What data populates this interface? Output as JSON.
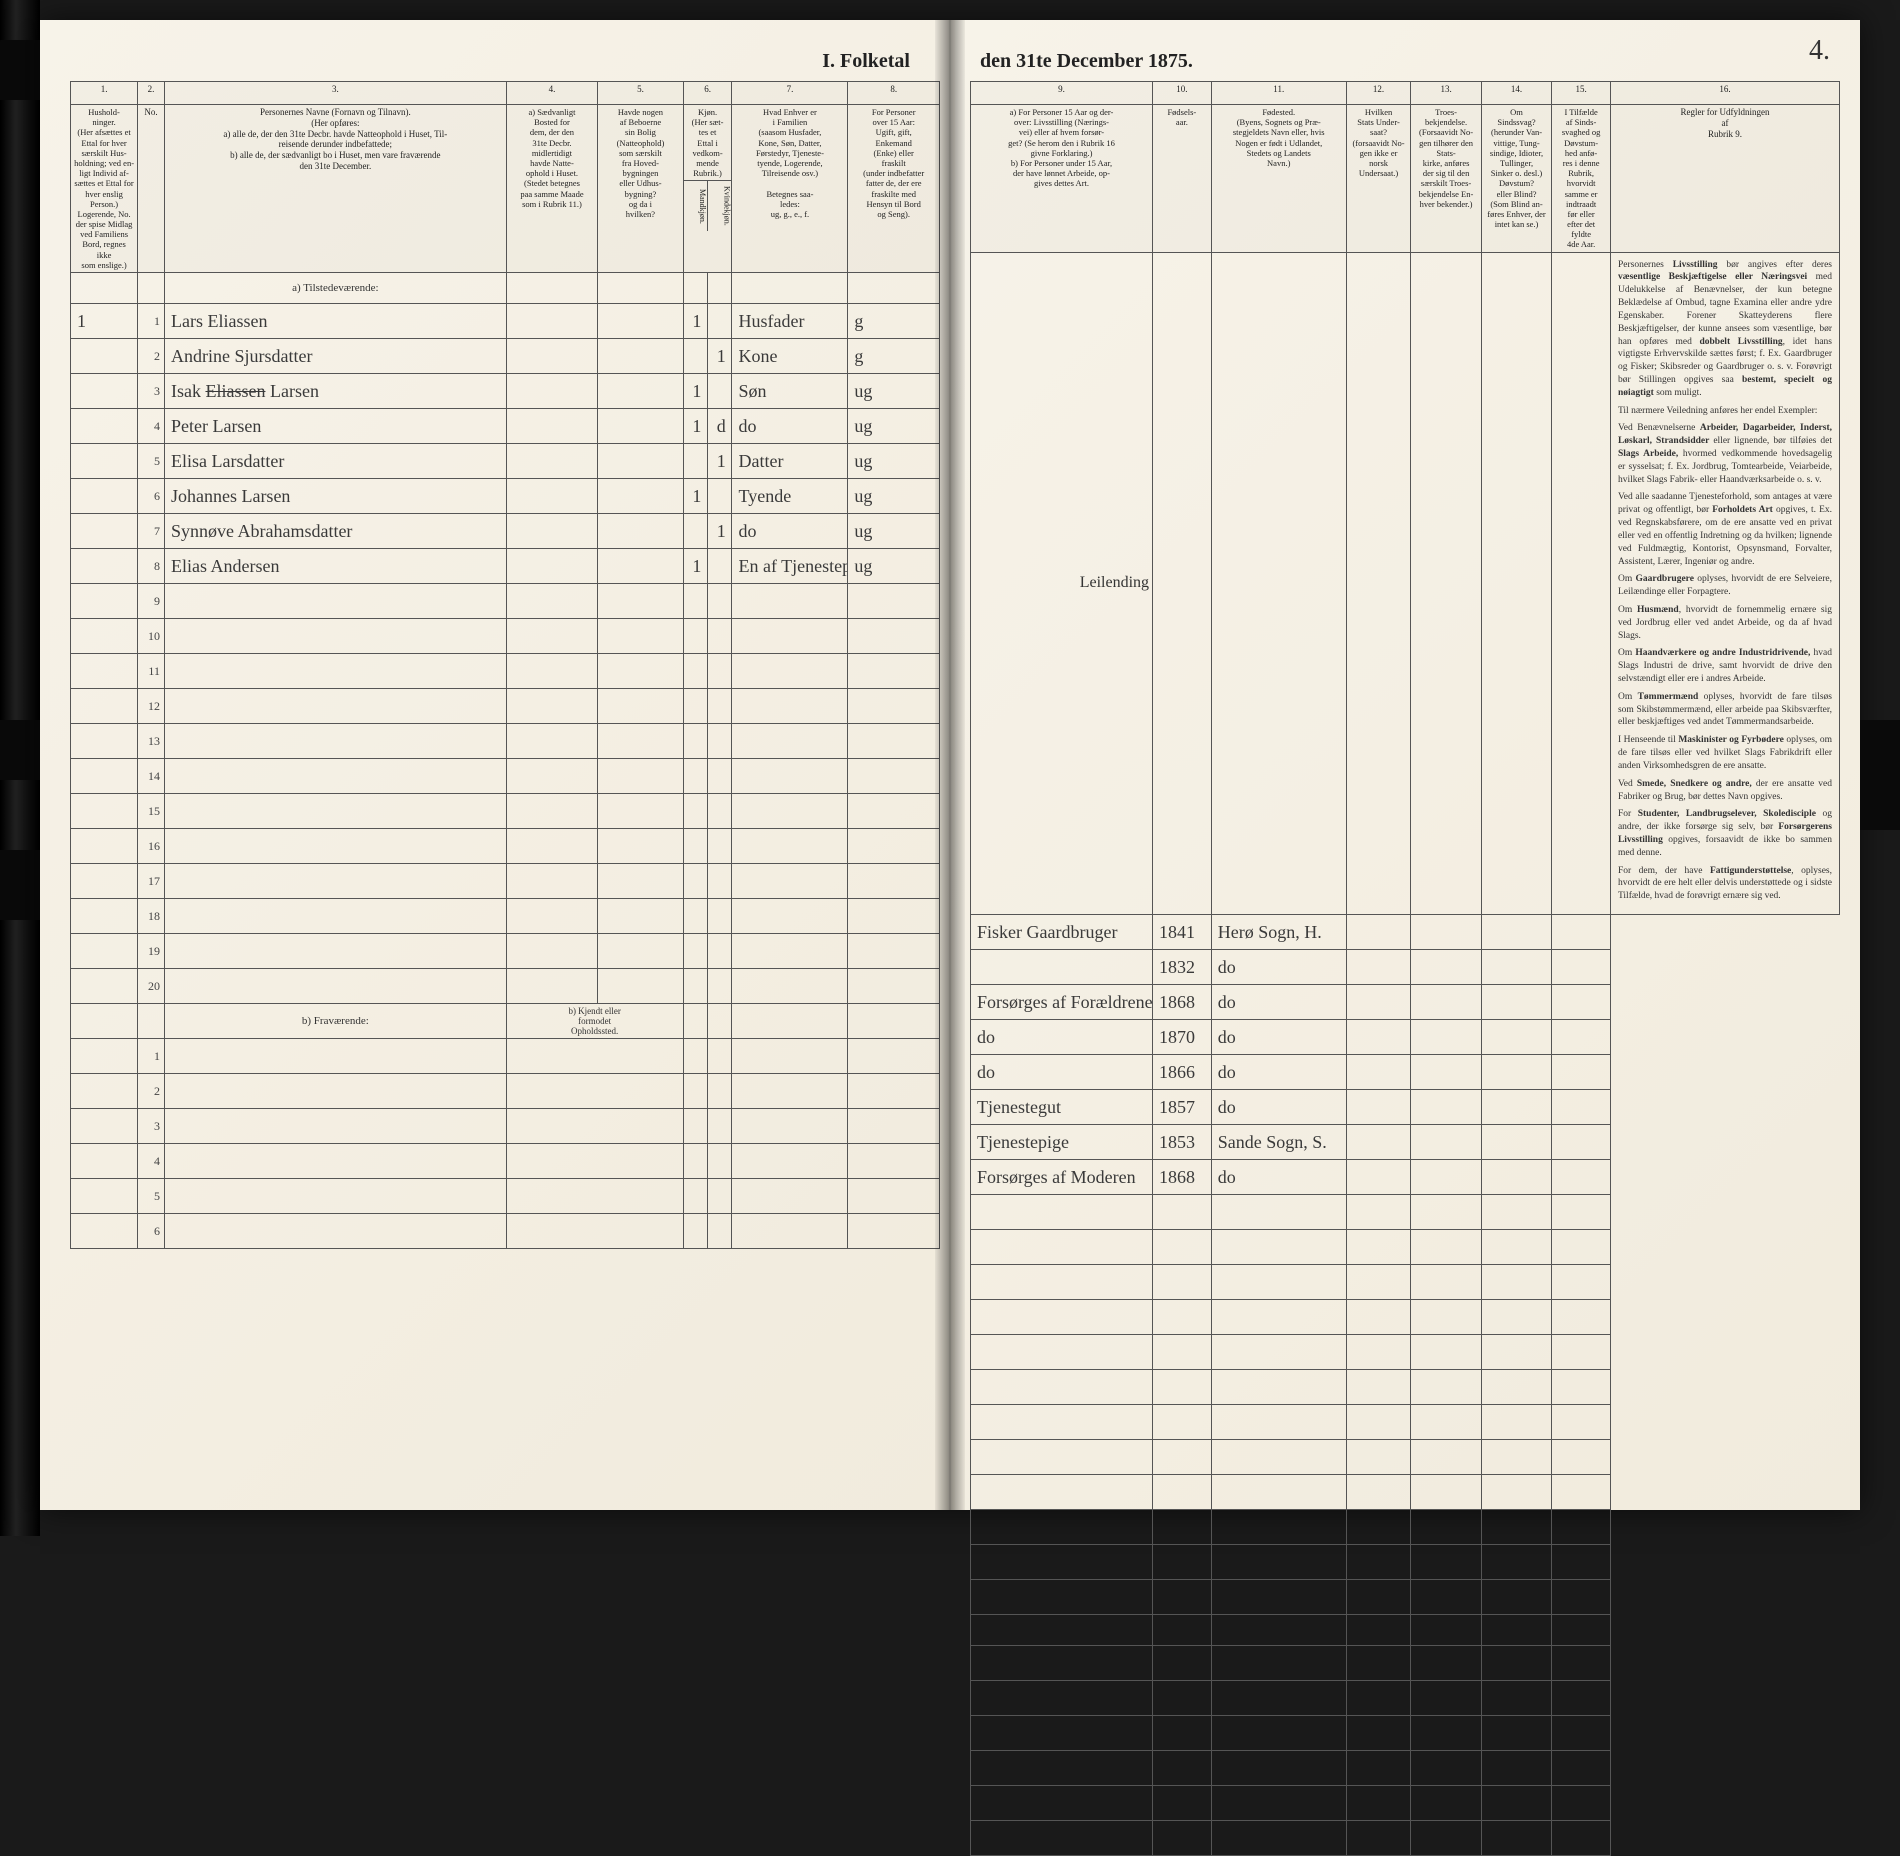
{
  "title_left": "I. Folketal",
  "title_right": "den 31te December 1875.",
  "page_number_right": "4.",
  "left_columns_numbers": [
    "1.",
    "2.",
    "3.",
    "4.",
    "5.",
    "6.",
    "7.",
    "8."
  ],
  "right_columns_numbers": [
    "9.",
    "10.",
    "11.",
    "12.",
    "13.",
    "14.",
    "15.",
    "16."
  ],
  "left_headers": {
    "c1": "Hushold-\nninger.\n(Her afsættes et\nEttal for hver\nsærskilt Hus-\nholdning; ved en-\nligt Individ af-\nsættes et Ettal for\nhver enslig\nPerson.)\nLogerende, No.\nder spise Midlag\nved Familiens\nBord, regnes ikke\nsom enslige.)",
    "c2": "No.",
    "c3": "Personernes Navne (Fornavn og Tilnavn).\n(Her opføres:\na) alle de, der den 31te Decbr. havde Natteophold i Huset, Til-\nreisende derunder indbefattede;\nb) alle de, der sædvanligt bo i Huset, men vare fraværende\nden 31te December.",
    "c4": "a) Sædvanligt\nBosted for\ndem, der den\n31te Decbr.\nmidlertidigt\nhavde Natte-\nophold i Huset.\n(Stedet betegnes\npaa samme Maade\nsom i Rubrik 11.)",
    "c5": "Havde nogen\naf Beboerne\nsin Bolig\n(Natteophold)\nsom særskilt\nfra Hoved-\nbygningen\neller Udhus-\nbygning?\nog da i\nhvilken?",
    "c6": "Kjøn.\n(Her sæt-\ntes et\nEttal i\nvedkom-\nmende\nRubrik.)",
    "c6a": "Mandkjøn.",
    "c6b": "Kvindekjøn.",
    "c7": "Hvad Enhver er\ni Familien\n(saasom Husfader,\nKone, Søn, Datter,\nFørstedyr, Tjeneste-\ntyende, Logerende,\nTilreisende osv.)\n\nBetegnes saa-\nledes:\nug, g., e., f.",
    "c8": "For Personer\nover 15 Aar:\nUgift, gift,\nEnkemand\n(Enke) eller\nfraskilt\n(under indbefatter\nfatter de, der ere\nfraskilte med\nHensyn til Bord\nog Seng)."
  },
  "right_headers": {
    "c9": "a) For Personer 15 Aar og der-\nover: Livsstilling (Nærings-\nvei) eller af hvem forsør-\nget? (Se herom den i Rubrik 16\ngivne Forklaring.)\nb) For Personer under 15 Aar,\nder have lønnet Arbeide, op-\ngives dettes Art.",
    "c10": "Fødsels-\naar.",
    "c11": "Fødested.\n(Byens, Sognets og Præ-\nstegjeldets Navn eller, hvis\nNogen er født i Udlandet,\nStedets og Landets\nNavn.)",
    "c12": "Hvilken\nStats Under-\nsaat?\n(forsaavidt No-\ngen ikke er\nnorsk\nUndersaat.)",
    "c13": "Troes-\nbekjendelse.\n(Forsaavidt No-\ngen tilhører den\nStats-\nkirke, anføres\nder sig til den\nsærskilt Troes-\nbekjendelse En-\nhver bekender.)",
    "c14": "Om\nSindssvag?\n(herunder Van-\nvittige, Tung-\nsindige, Idioter,\nTullinger,\nSinker o. desl.)\nDøvstum?\neller Blind?\n(Som Blind an-\nføres Enhver, der\nintet kan se.)",
    "c15": "I Tilfælde\naf Sinds-\nsvaghed og\nDøvstum-\nhed anfø-\nres i denne\nRubrik,\nhvorvidt\nsamme er\nindtraadt\nfør eller\nefter det\nfyldte\n4de Aar.",
    "c16": "Regler for Udfyldningen\naf\nRubrik 9."
  },
  "section_a": "a) Tilstedeværende:",
  "section_b": "b) Fraværende:",
  "section_b_right": "b) Kjendt eller\nformodet\nOpholdssted.",
  "extra_note": "Leilending",
  "rows": [
    {
      "hh": "1",
      "no": "1",
      "name": "Lars Eliassen",
      "c4": "",
      "c5": "",
      "m": "1",
      "k": "",
      "fam": "Husfader",
      "stat": "g",
      "liv": "Fisker Gaardbruger",
      "aar": "1841",
      "sted": "Herø Sogn, H.",
      "d": "",
      "e": "",
      "f": "",
      "g": ""
    },
    {
      "hh": "",
      "no": "2",
      "name": "Andrine Sjursdatter",
      "c4": "",
      "c5": "",
      "m": "",
      "k": "1",
      "fam": "Kone",
      "stat": "g",
      "liv": "",
      "aar": "1832",
      "sted": "do",
      "d": "",
      "e": "",
      "f": "",
      "g": ""
    },
    {
      "hh": "",
      "no": "3",
      "name": "Isak <s>Eliassen</s> Larsen",
      "c4": "",
      "c5": "",
      "m": "1",
      "k": "",
      "fam": "Søn",
      "stat": "ug",
      "liv": "Forsørges af Forældrene",
      "aar": "1868",
      "sted": "do",
      "d": "",
      "e": "",
      "f": "",
      "g": ""
    },
    {
      "hh": "",
      "no": "4",
      "name": "Peter Larsen",
      "c4": "",
      "c5": "",
      "m": "1",
      "k": "d",
      "fam": "do",
      "stat": "ug",
      "liv": "do",
      "aar": "1870",
      "sted": "do",
      "d": "",
      "e": "",
      "f": "",
      "g": ""
    },
    {
      "hh": "",
      "no": "5",
      "name": "Elisa Larsdatter",
      "c4": "",
      "c5": "",
      "m": "",
      "k": "1",
      "fam": "Datter",
      "stat": "ug",
      "liv": "do",
      "aar": "1866",
      "sted": "do",
      "d": "",
      "e": "",
      "f": "",
      "g": ""
    },
    {
      "hh": "",
      "no": "6",
      "name": "Johannes Larsen",
      "c4": "",
      "c5": "",
      "m": "1",
      "k": "",
      "fam": "Tyende",
      "stat": "ug",
      "liv": "Tjenestegut",
      "aar": "1857",
      "sted": "do",
      "d": "",
      "e": "",
      "f": "",
      "g": ""
    },
    {
      "hh": "",
      "no": "7",
      "name": "Synnøve Abrahamsdatter",
      "c4": "",
      "c5": "",
      "m": "",
      "k": "1",
      "fam": "do",
      "stat": "ug",
      "liv": "Tjenestepige",
      "aar": "1853",
      "sted": "Sande Sogn, S.",
      "d": "",
      "e": "",
      "f": "",
      "g": ""
    },
    {
      "hh": "",
      "no": "8",
      "name": "Elias Andersen",
      "c4": "",
      "c5": "",
      "m": "1",
      "k": "",
      "fam": "En af Tjenestepige Søn",
      "stat": "ug",
      "liv": "Forsørges af Moderen",
      "aar": "1868",
      "sted": "do",
      "d": "",
      "e": "",
      "f": "",
      "g": ""
    }
  ],
  "empty_rows_a": [
    "9",
    "10",
    "11",
    "12",
    "13",
    "14",
    "15",
    "16",
    "17",
    "18",
    "19",
    "20"
  ],
  "empty_rows_b": [
    "1",
    "2",
    "3",
    "4",
    "5",
    "6"
  ],
  "rules_paragraphs": [
    "Personernes <b>Livsstilling</b> bør angives efter deres <b>væsentlige Beskjæftigelse eller Næringsvei</b> med Udelukkelse af Benævnelser, der kun betegne Beklædelse af Ombud, tagne Examina eller andre ydre Egenskaber. Forener Skatteyderens flere Beskjæftigelser, der kunne ansees som væsentlige, bør han opføres med <b>dobbelt Livsstilling</b>, idet hans vigtigste Erhvervskilde sættes først; f. Ex. Gaardbruger og Fisker; Skibsreder og Gaardbruger o. s. v. Forøvrigt bør Stillingen opgives saa <b>bestemt, specielt og nøiagtigt</b> som muligt.",
    "Til nærmere Veiledning anføres her endel Exempler:",
    "Ved Benævnelserne <b>Arbeider, Dagarbeider, Inderst, Løskarl, Strandsidder</b> eller lignende, bør tilføies det <b>Slags Arbeide,</b> hvormed vedkommende hovedsagelig er sysselsat; f. Ex. Jordbrug, Tomtearbeide, Veiarbeide, hvilket Slags Fabrik- eller Haandværksarbeide o. s. v.",
    "Ved alle saadanne Tjenesteforhold, som antages at være privat og offentligt, bør <b>Forholdets Art</b> opgives, t. Ex. ved Regnskabsførere, om de ere ansatte ved en privat eller ved en offentlig Indretning og da hvilken; lignende ved Fuldmægtig, Kontorist, Opsynsmand, Forvalter, Assistent, Lærer, Ingeniør og andre.",
    "Om <b>Gaardbrugere</b> oplyses, hvorvidt de ere Selveiere, Leilændinge eller Forpagtere.",
    "Om <b>Husmænd</b>, hvorvidt de fornemmelig ernære sig ved Jordbrug eller ved andet Arbeide, og da af hvad Slags.",
    "Om <b>Haandværkere og andre Industridrivende,</b> hvad Slags Industri de drive, samt hvorvidt de drive den selvstændigt eller ere i andres Arbeide.",
    "Om <b>Tømmermænd</b> oplyses, hvorvidt de fare tilsøs som Skibstømmermænd, eller arbeide paa Skibsværfter, eller beskjæftiges ved andet Tømmermandsarbeide.",
    "I Henseende til <b>Maskinister og Fyrbødere</b> oplyses, om de fare tilsøs eller ved hvilket Slags Fabrikdrift eller anden Virksomhedsgren de ere ansatte.",
    "Ved <b>Smede, Snedkere og andre,</b> der ere ansatte ved Fabriker og Brug, bør dettes Navn opgives.",
    "For <b>Studenter, Landbrugselever, Skoledisciple</b> og andre, der ikke forsørge sig selv, bør <b>Forsørgerens Livsstilling</b> opgives, forsaavidt de ikke bo sammen med denne.",
    "For dem, der have <b>Fattigunderstøttelse</b>, oplyses, hvorvidt de ere helt eller delvis understøttede og i sidste Tilfælde, hvad de forøvrigt ernære sig ved."
  ],
  "colors": {
    "paper": "#f5f0e6",
    "ink": "#333333",
    "border": "#555555",
    "handwriting": "#3a3a3a"
  }
}
